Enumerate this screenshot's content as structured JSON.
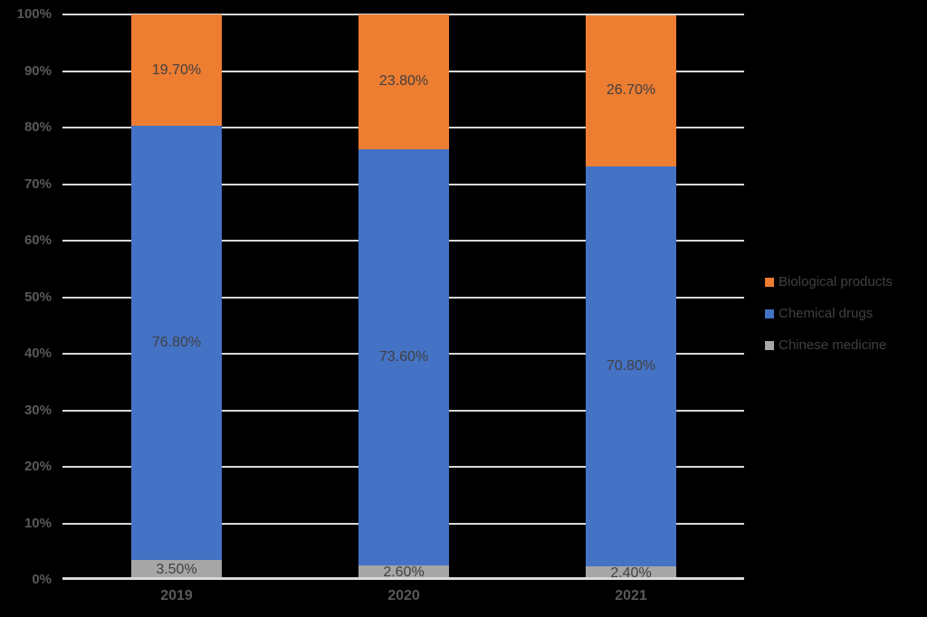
{
  "page": {
    "background_color": "#000000"
  },
  "chart_data": {
    "type": "bar",
    "stacked": true,
    "orientation": "vertical",
    "title": "",
    "xlabel": "",
    "ylabel": "",
    "categories": [
      "2019",
      "2020",
      "2021"
    ],
    "series": [
      {
        "name": "Chinese medicine",
        "color": "#A6A6A6",
        "values": [
          3.5,
          2.6,
          2.4
        ],
        "labels": [
          "3.50%",
          "2.60%",
          "2.40%"
        ]
      },
      {
        "name": "Chemical drugs",
        "color": "#4472C4",
        "values": [
          76.8,
          73.6,
          70.8
        ],
        "labels": [
          "76.80%",
          "73.60%",
          "70.80%"
        ]
      },
      {
        "name": "Biological products",
        "color": "#ED7D31",
        "values": [
          19.7,
          23.8,
          26.7
        ],
        "labels": [
          "19.70%",
          "23.80%",
          "26.70%"
        ]
      }
    ],
    "y_axis": {
      "min": 0,
      "max": 100,
      "step": 10,
      "tick_labels": [
        "0%",
        "10%",
        "20%",
        "30%",
        "40%",
        "50%",
        "60%",
        "70%",
        "80%",
        "90%",
        "100%"
      ]
    },
    "grid": true,
    "gridline_color": "#D9D9D9",
    "label_color": "#404040",
    "axis_text_color": "#595959",
    "legend": {
      "position": "right",
      "entries": [
        "Biological products",
        "Chemical drugs",
        "Chinese medicine"
      ]
    }
  }
}
